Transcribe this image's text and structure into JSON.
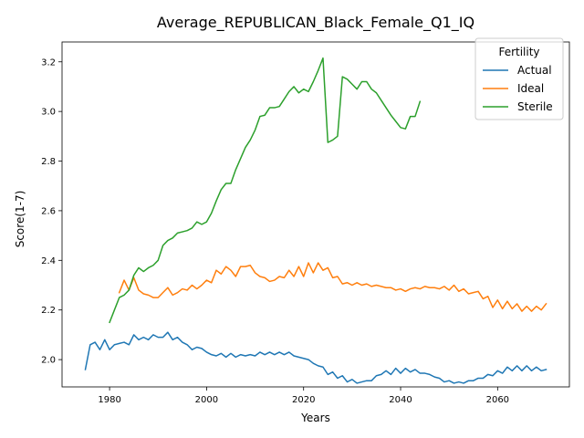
{
  "chart_data": {
    "type": "line",
    "title": "Average_REPUBLICAN_Black_Female_Q1_IQ",
    "xlabel": "Years",
    "ylabel": "Score(1-7)",
    "xlim": [
      1970.2,
      2074.8
    ],
    "ylim": [
      1.89,
      3.28
    ],
    "xticks": [
      1980,
      2000,
      2020,
      2040,
      2060
    ],
    "yticks": [
      2.0,
      2.2,
      2.4,
      2.6,
      2.8,
      3.0,
      3.2
    ],
    "ytick_labels": [
      "2.0",
      "2.2",
      "2.4",
      "2.6",
      "2.8",
      "3.0",
      "3.2"
    ],
    "grid": false,
    "legend": {
      "title": "Fertility",
      "placement": "top-right"
    },
    "series": [
      {
        "name": "Actual",
        "color": "#1f77b4",
        "x": [
          1975,
          1976,
          1977,
          1978,
          1979,
          1980,
          1981,
          1982,
          1983,
          1984,
          1985,
          1986,
          1987,
          1988,
          1989,
          1990,
          1991,
          1992,
          1993,
          1994,
          1995,
          1996,
          1997,
          1998,
          1999,
          2000,
          2001,
          2002,
          2003,
          2004,
          2005,
          2006,
          2007,
          2008,
          2009,
          2010,
          2011,
          2012,
          2013,
          2014,
          2015,
          2016,
          2017,
          2018,
          2019,
          2020,
          2021,
          2022,
          2023,
          2024,
          2025,
          2026,
          2027,
          2028,
          2029,
          2030,
          2031,
          2032,
          2033,
          2034,
          2035,
          2036,
          2037,
          2038,
          2039,
          2040,
          2041,
          2042,
          2043,
          2044,
          2045,
          2046,
          2047,
          2048,
          2049,
          2050,
          2051,
          2052,
          2053,
          2054,
          2055,
          2056,
          2057,
          2058,
          2059,
          2060,
          2061,
          2062,
          2063,
          2064,
          2065,
          2066,
          2067,
          2068,
          2069,
          2070
        ],
        "values": [
          1.96,
          2.06,
          2.07,
          2.04,
          2.08,
          2.04,
          2.06,
          2.065,
          2.07,
          2.06,
          2.1,
          2.08,
          2.09,
          2.08,
          2.1,
          2.09,
          2.09,
          2.11,
          2.08,
          2.09,
          2.07,
          2.06,
          2.04,
          2.05,
          2.045,
          2.03,
          2.02,
          2.015,
          2.025,
          2.01,
          2.025,
          2.01,
          2.02,
          2.015,
          2.02,
          2.015,
          2.03,
          2.02,
          2.03,
          2.02,
          2.03,
          2.02,
          2.03,
          2.015,
          2.01,
          2.005,
          2.0,
          1.985,
          1.975,
          1.97,
          1.94,
          1.95,
          1.925,
          1.935,
          1.91,
          1.92,
          1.905,
          1.91,
          1.915,
          1.915,
          1.935,
          1.94,
          1.955,
          1.94,
          1.965,
          1.945,
          1.965,
          1.95,
          1.96,
          1.945,
          1.945,
          1.94,
          1.93,
          1.925,
          1.91,
          1.915,
          1.905,
          1.91,
          1.905,
          1.915,
          1.915,
          1.925,
          1.925,
          1.94,
          1.935,
          1.955,
          1.945,
          1.97,
          1.955,
          1.975,
          1.955,
          1.975,
          1.955,
          1.97,
          1.955,
          1.96
        ]
      },
      {
        "name": "Ideal",
        "color": "#ff7f0e",
        "x": [
          1982,
          1983,
          1984,
          1985,
          1986,
          1987,
          1988,
          1989,
          1990,
          1991,
          1992,
          1993,
          1994,
          1995,
          1996,
          1997,
          1998,
          1999,
          2000,
          2001,
          2002,
          2003,
          2004,
          2005,
          2006,
          2007,
          2008,
          2009,
          2010,
          2011,
          2012,
          2013,
          2014,
          2015,
          2016,
          2017,
          2018,
          2019,
          2020,
          2021,
          2022,
          2023,
          2024,
          2025,
          2026,
          2027,
          2028,
          2029,
          2030,
          2031,
          2032,
          2033,
          2034,
          2035,
          2036,
          2037,
          2038,
          2039,
          2040,
          2041,
          2042,
          2043,
          2044,
          2045,
          2046,
          2047,
          2048,
          2049,
          2050,
          2051,
          2052,
          2053,
          2054,
          2055,
          2056,
          2057,
          2058,
          2059,
          2060,
          2061,
          2062,
          2063,
          2064,
          2065,
          2066,
          2067,
          2068,
          2069,
          2070
        ],
        "values": [
          2.27,
          2.32,
          2.28,
          2.33,
          2.28,
          2.265,
          2.26,
          2.25,
          2.25,
          2.27,
          2.29,
          2.26,
          2.27,
          2.285,
          2.28,
          2.3,
          2.285,
          2.3,
          2.32,
          2.31,
          2.36,
          2.345,
          2.375,
          2.36,
          2.335,
          2.375,
          2.375,
          2.38,
          2.35,
          2.335,
          2.33,
          2.315,
          2.32,
          2.335,
          2.33,
          2.36,
          2.335,
          2.375,
          2.335,
          2.39,
          2.35,
          2.39,
          2.36,
          2.37,
          2.33,
          2.335,
          2.305,
          2.31,
          2.3,
          2.31,
          2.3,
          2.305,
          2.295,
          2.3,
          2.295,
          2.29,
          2.29,
          2.28,
          2.285,
          2.275,
          2.285,
          2.29,
          2.285,
          2.295,
          2.29,
          2.29,
          2.285,
          2.295,
          2.28,
          2.3,
          2.275,
          2.285,
          2.265,
          2.27,
          2.275,
          2.245,
          2.255,
          2.21,
          2.24,
          2.205,
          2.235,
          2.205,
          2.225,
          2.195,
          2.215,
          2.195,
          2.215,
          2.2,
          2.225
        ]
      },
      {
        "name": "Sterile",
        "color": "#2ca02c",
        "x": [
          1980,
          1981,
          1982,
          1983,
          1984,
          1985,
          1986,
          1987,
          1988,
          1989,
          1990,
          1991,
          1992,
          1993,
          1994,
          1995,
          1996,
          1997,
          1998,
          1999,
          2000,
          2001,
          2002,
          2003,
          2004,
          2005,
          2006,
          2007,
          2008,
          2009,
          2010,
          2011,
          2012,
          2013,
          2014,
          2015,
          2016,
          2017,
          2018,
          2019,
          2020,
          2021,
          2022,
          2023,
          2024,
          2025,
          2026,
          2027,
          2028,
          2029,
          2030,
          2031,
          2032,
          2033,
          2034,
          2035,
          2036,
          2037,
          2038,
          2039,
          2040,
          2041,
          2042,
          2043,
          2044
        ],
        "values": [
          2.15,
          2.2,
          2.25,
          2.26,
          2.28,
          2.34,
          2.37,
          2.355,
          2.37,
          2.38,
          2.4,
          2.46,
          2.48,
          2.49,
          2.51,
          2.515,
          2.52,
          2.53,
          2.555,
          2.545,
          2.555,
          2.59,
          2.64,
          2.685,
          2.71,
          2.71,
          2.765,
          2.81,
          2.855,
          2.885,
          2.925,
          2.98,
          2.985,
          3.015,
          3.015,
          3.02,
          3.05,
          3.08,
          3.1,
          3.075,
          3.09,
          3.08,
          3.12,
          3.165,
          3.215,
          2.875,
          2.885,
          2.9,
          3.14,
          3.13,
          3.11,
          3.09,
          3.12,
          3.12,
          3.09,
          3.075,
          3.045,
          3.015,
          2.985,
          2.96,
          2.935,
          2.93,
          2.98,
          2.98,
          3.04
        ]
      }
    ]
  }
}
